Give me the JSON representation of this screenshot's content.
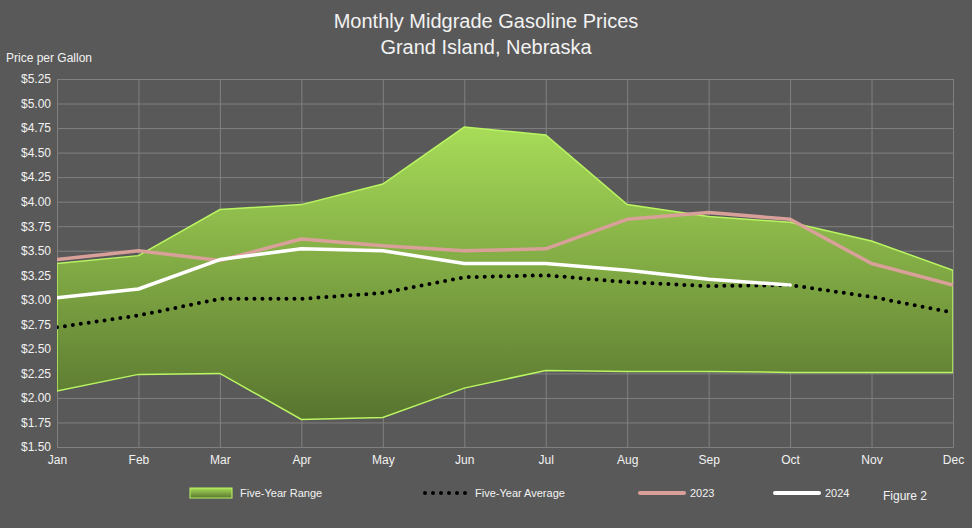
{
  "chart_data": {
    "type": "line",
    "title": "Monthly Midgrade Gasoline Prices",
    "subtitle": "Grand Island, Nebraska",
    "y_label": "Price per Gallon",
    "annotation": "Figure 2",
    "categories": [
      "Jan",
      "Feb",
      "Mar",
      "Apr",
      "May",
      "Jun",
      "Jul",
      "Aug",
      "Sep",
      "Oct",
      "Nov",
      "Dec"
    ],
    "ylim": [
      1.5,
      5.25
    ],
    "yticks": [
      {
        "value": 1.5,
        "label": "$1.50"
      },
      {
        "value": 1.75,
        "label": "$1.75"
      },
      {
        "value": 2,
        "label": "$2.00"
      },
      {
        "value": 2.25,
        "label": "$2.25"
      },
      {
        "value": 2.5,
        "label": "$2.50"
      },
      {
        "value": 2.75,
        "label": "$2.75"
      },
      {
        "value": 3,
        "label": "$3.00"
      },
      {
        "value": 3.25,
        "label": "$3.25"
      },
      {
        "value": 3.5,
        "label": "$3.50"
      },
      {
        "value": 3.75,
        "label": "$3.75"
      },
      {
        "value": 4,
        "label": "$4.00"
      },
      {
        "value": 4.25,
        "label": "$4.25"
      },
      {
        "value": 4.5,
        "label": "$4.50"
      },
      {
        "value": 4.75,
        "label": "$4.75"
      },
      {
        "value": 5,
        "label": "$5.00"
      },
      {
        "value": 5.25,
        "label": "$5.25"
      }
    ],
    "grid": true,
    "legend": "bottom",
    "series": [
      {
        "name": "Five-Year Range",
        "type": "area",
        "color": "#8cb84a",
        "values": [
          3.37,
          3.45,
          3.92,
          3.97,
          4.18,
          4.76,
          4.68,
          3.97,
          3.85,
          3.79,
          3.6,
          3.3
        ],
        "low": [
          2.07,
          2.24,
          2.25,
          1.78,
          1.8,
          2.1,
          2.28,
          2.27,
          2.27,
          2.26,
          2.26,
          2.26
        ]
      },
      {
        "name": "Five-Year Average",
        "type": "line",
        "color": "#000000",
        "line_style": "dotted",
        "values": [
          2.72,
          2.84,
          3.01,
          3.01,
          3.07,
          3.23,
          3.25,
          3.18,
          3.14,
          3.15,
          3.03,
          2.87
        ]
      },
      {
        "name": "2023",
        "type": "line",
        "color": "#d9a09a",
        "line_style": "solid",
        "values": [
          3.41,
          3.5,
          3.4,
          3.62,
          3.55,
          3.5,
          3.52,
          3.82,
          3.89,
          3.82,
          3.37,
          3.15
        ]
      },
      {
        "name": "2024",
        "type": "line",
        "color": "#ffffff",
        "line_style": "solid",
        "values": [
          3.02,
          3.11,
          3.41,
          3.52,
          3.5,
          3.37,
          3.37,
          3.3,
          3.21,
          3.15,
          null,
          null
        ]
      }
    ]
  }
}
